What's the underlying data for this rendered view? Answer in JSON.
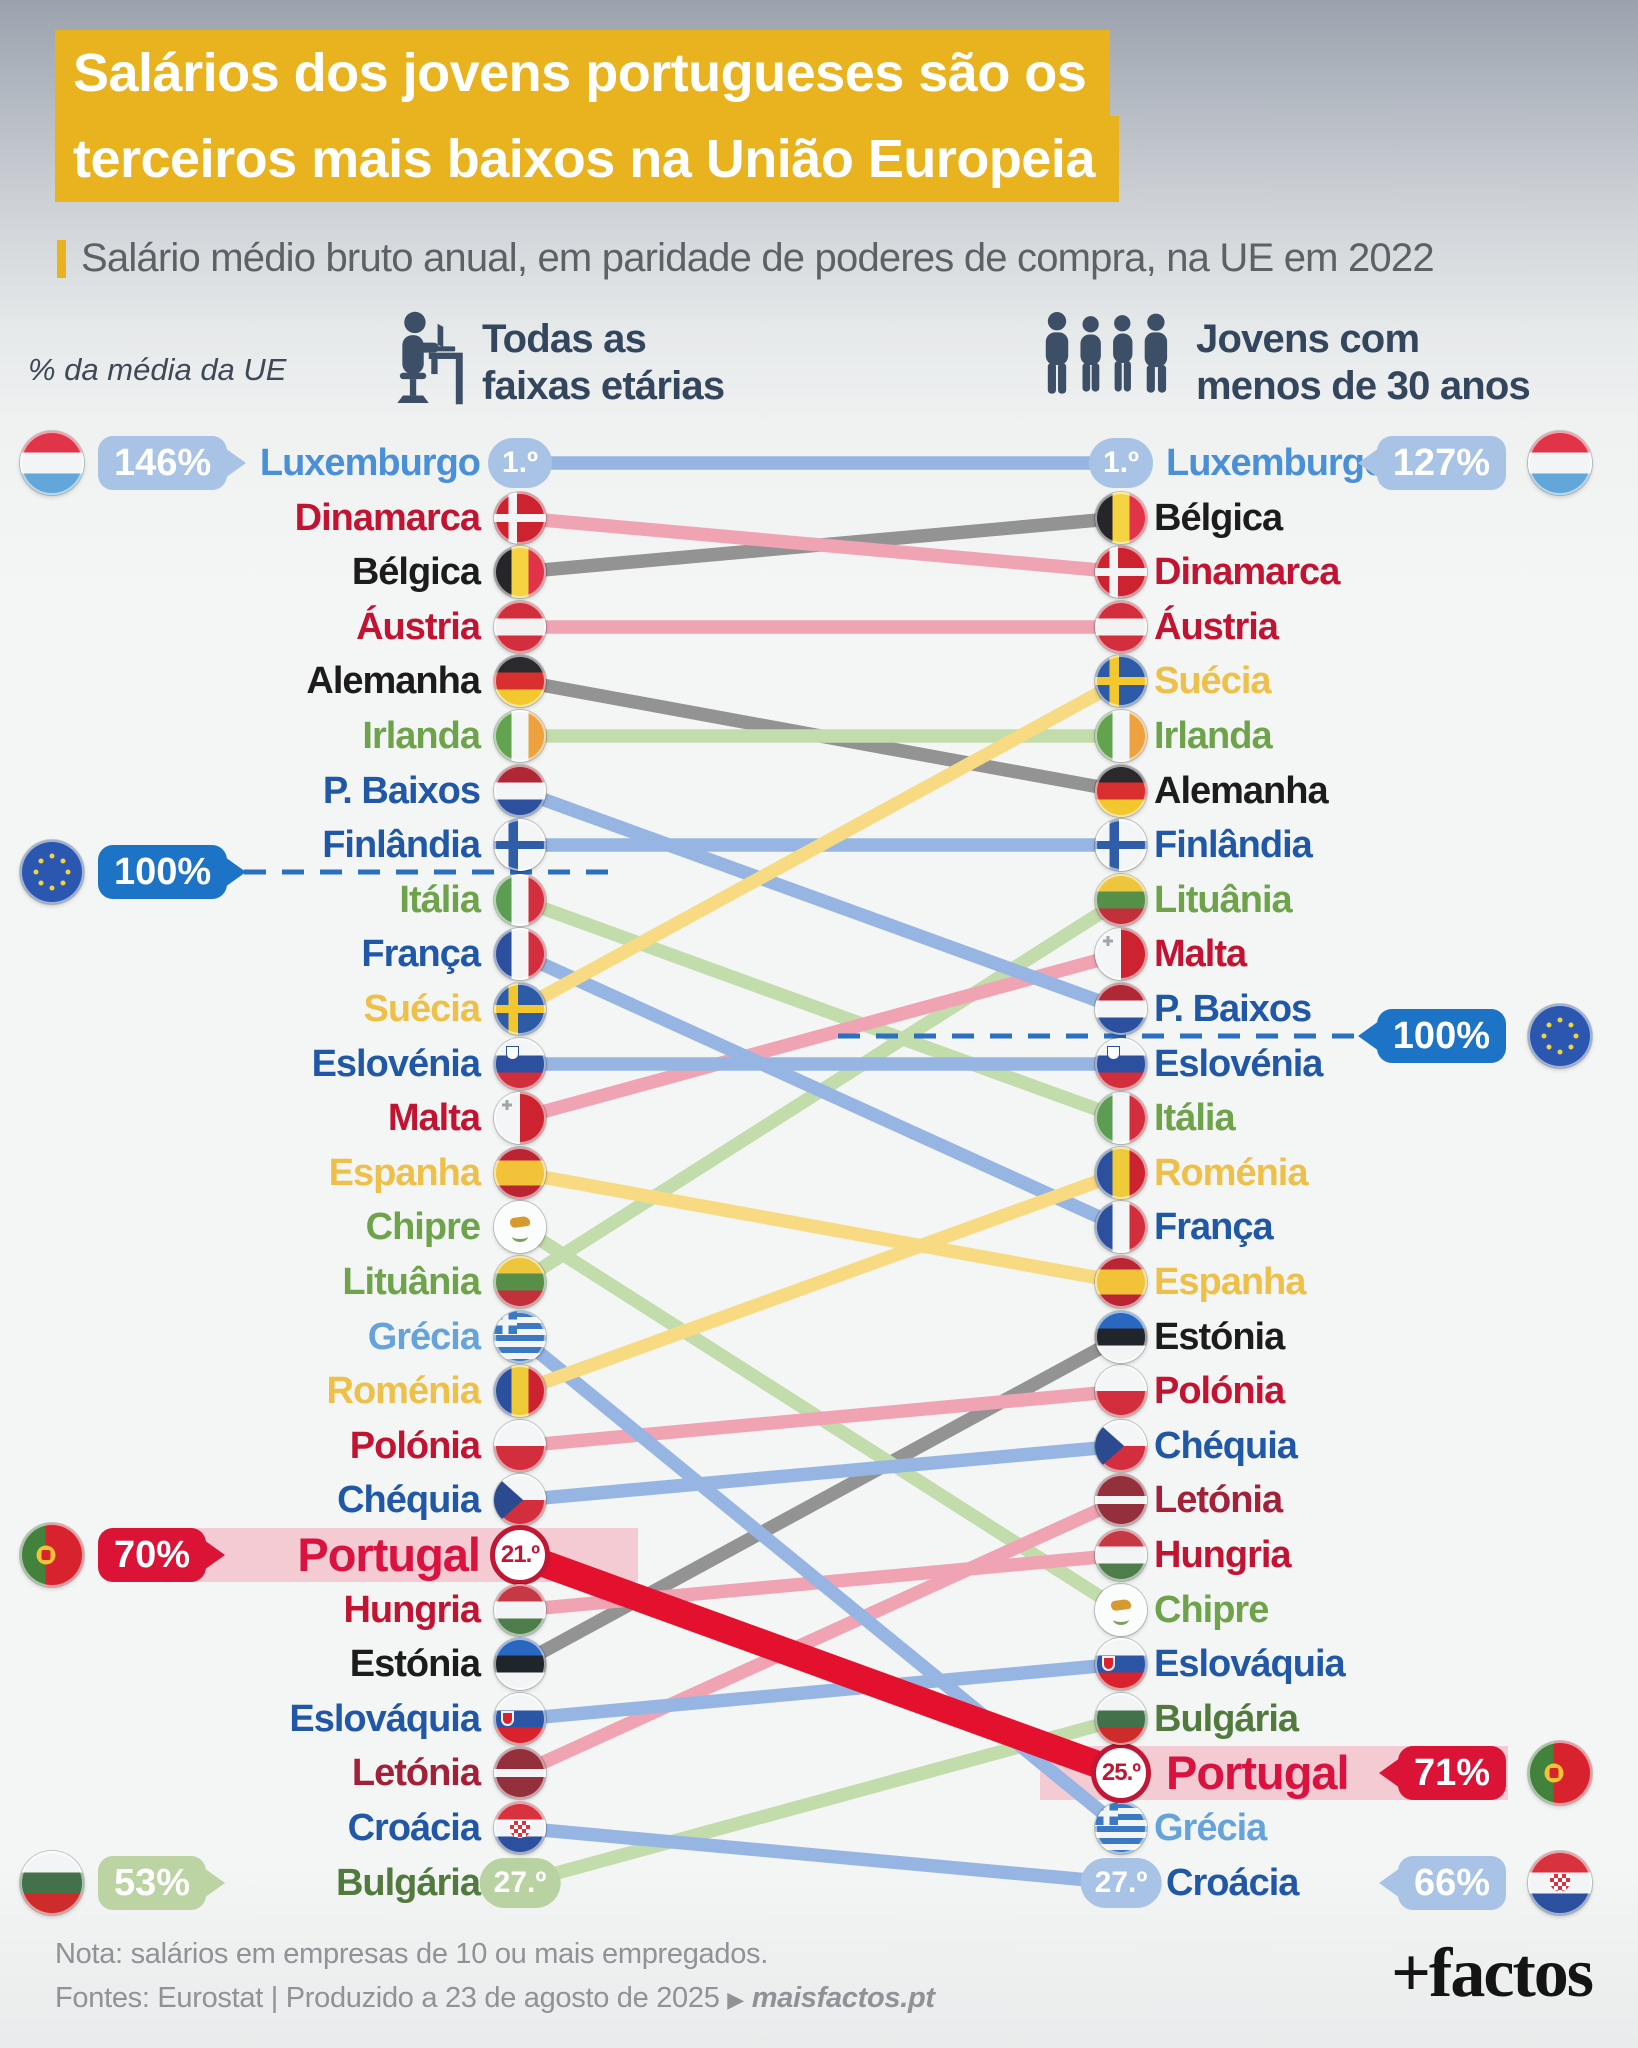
{
  "title": {
    "line1": "Salários dos jovens portugueses são os",
    "line2": "terceiros mais baixos na União Europeia"
  },
  "subtitle": "Salário médio bruto anual, em paridade de poderes de compra, na UE em 2022",
  "axis_note": "% da média da UE",
  "columns": {
    "left": {
      "label_line1": "Todas as",
      "label_line2": "faixas etárias",
      "icon": "worker-at-desk-icon"
    },
    "right": {
      "label_line1": "Jovens com",
      "label_line2": "menos de 30 anos",
      "icon": "young-people-icon"
    }
  },
  "chart_data": {
    "type": "slope",
    "title": "Salários dos jovens portugueses são os terceiros mais baixos na União Europeia",
    "subtitle": "Salário médio bruto anual, em paridade de poderes de compra, na UE em 2022",
    "categories": [
      "Todas as faixas etárias",
      "Jovens com menos de 30 anos"
    ],
    "rank_range": [
      1,
      27
    ],
    "countries": [
      {
        "name": "Luxemburgo",
        "flag": "luxembourg",
        "code": "lu",
        "rank_all_ages": 1,
        "rank_under_30": 1,
        "text_color": "blue_bright",
        "line_color": "blue",
        "badge_left": {
          "label": "1.º",
          "style": "lightblue"
        },
        "badge_right": {
          "label": "1.º",
          "style": "lightblue"
        }
      },
      {
        "name": "Dinamarca",
        "flag": "denmark",
        "code": "dk",
        "rank_all_ages": 2,
        "rank_under_30": 3,
        "text_color": "red",
        "line_color": "pink"
      },
      {
        "name": "Bélgica",
        "flag": "belgium",
        "code": "be",
        "rank_all_ages": 3,
        "rank_under_30": 2,
        "text_color": "black",
        "line_color": "gray"
      },
      {
        "name": "Áustria",
        "flag": "austria",
        "code": "at",
        "rank_all_ages": 4,
        "rank_under_30": 4,
        "text_color": "red",
        "line_color": "pink"
      },
      {
        "name": "Alemanha",
        "flag": "germany",
        "code": "de",
        "rank_all_ages": 5,
        "rank_under_30": 7,
        "text_color": "black",
        "line_color": "gray"
      },
      {
        "name": "Irlanda",
        "flag": "ireland",
        "code": "ie",
        "rank_all_ages": 6,
        "rank_under_30": 6,
        "text_color": "green",
        "line_color": "green"
      },
      {
        "name": "P. Baixos",
        "flag": "netherlands",
        "code": "nl",
        "rank_all_ages": 7,
        "rank_under_30": 11,
        "text_color": "blue",
        "line_color": "blue"
      },
      {
        "name": "Finlândia",
        "flag": "finland",
        "code": "fi",
        "rank_all_ages": 8,
        "rank_under_30": 8,
        "text_color": "blue",
        "line_color": "blue"
      },
      {
        "name": "Itália",
        "flag": "italy",
        "code": "it",
        "rank_all_ages": 9,
        "rank_under_30": 13,
        "text_color": "green",
        "line_color": "green"
      },
      {
        "name": "França",
        "flag": "france",
        "code": "fr",
        "rank_all_ages": 10,
        "rank_under_30": 15,
        "text_color": "blue",
        "line_color": "blue"
      },
      {
        "name": "Suécia",
        "flag": "sweden",
        "code": "se",
        "rank_all_ages": 11,
        "rank_under_30": 5,
        "text_color": "gold",
        "line_color": "yellow"
      },
      {
        "name": "Eslovénia",
        "flag": "slovenia",
        "code": "si",
        "rank_all_ages": 12,
        "rank_under_30": 12,
        "text_color": "blue",
        "line_color": "blue"
      },
      {
        "name": "Malta",
        "flag": "malta",
        "code": "mt",
        "rank_all_ages": 13,
        "rank_under_30": 10,
        "text_color": "red",
        "line_color": "pink"
      },
      {
        "name": "Espanha",
        "flag": "spain",
        "code": "es",
        "rank_all_ages": 14,
        "rank_under_30": 16,
        "text_color": "gold",
        "line_color": "yellow"
      },
      {
        "name": "Chipre",
        "flag": "cyprus",
        "code": "cy",
        "rank_all_ages": 15,
        "rank_under_30": 22,
        "text_color": "green",
        "line_color": "green"
      },
      {
        "name": "Lituânia",
        "flag": "lithuania",
        "code": "lt",
        "rank_all_ages": 16,
        "rank_under_30": 9,
        "text_color": "green",
        "line_color": "green"
      },
      {
        "name": "Grécia",
        "flag": "greece",
        "code": "gr",
        "rank_all_ages": 17,
        "rank_under_30": 26,
        "text_color": "light_blue",
        "line_color": "blue"
      },
      {
        "name": "Roménia",
        "flag": "romania",
        "code": "ro",
        "rank_all_ages": 18,
        "rank_under_30": 14,
        "text_color": "gold",
        "line_color": "yellow"
      },
      {
        "name": "Polónia",
        "flag": "poland",
        "code": "pl",
        "rank_all_ages": 19,
        "rank_under_30": 18,
        "text_color": "red",
        "line_color": "pink"
      },
      {
        "name": "Chéquia",
        "flag": "czechia",
        "code": "cz",
        "rank_all_ages": 20,
        "rank_under_30": 19,
        "text_color": "blue",
        "line_color": "blue"
      },
      {
        "name": "Portugal",
        "flag": "portugal",
        "code": "pt",
        "rank_all_ages": 21,
        "rank_under_30": 25,
        "text_color": "portugal",
        "line_color": "red",
        "highlight": true,
        "badge_left": {
          "label": "21.º",
          "style": "circle"
        },
        "badge_right": {
          "label": "25.º",
          "style": "circle"
        }
      },
      {
        "name": "Hungria",
        "flag": "hungary",
        "code": "hu",
        "rank_all_ages": 22,
        "rank_under_30": 21,
        "text_color": "red",
        "line_color": "pink"
      },
      {
        "name": "Estónia",
        "flag": "estonia",
        "code": "ee",
        "rank_all_ages": 23,
        "rank_under_30": 17,
        "text_color": "black",
        "line_color": "gray"
      },
      {
        "name": "Eslováquia",
        "flag": "slovakia",
        "code": "sk",
        "rank_all_ages": 24,
        "rank_under_30": 23,
        "text_color": "blue",
        "line_color": "blue"
      },
      {
        "name": "Letónia",
        "flag": "latvia",
        "code": "lv",
        "rank_all_ages": 25,
        "rank_under_30": 20,
        "text_color": "dark_red",
        "line_color": "pink"
      },
      {
        "name": "Croácia",
        "flag": "croatia",
        "code": "hr",
        "rank_all_ages": 26,
        "rank_under_30": 27,
        "text_color": "blue",
        "line_color": "blue",
        "badge_right": {
          "label": "27.º",
          "style": "lightblue"
        }
      },
      {
        "name": "Bulgária",
        "flag": "bulgaria",
        "code": "bg",
        "rank_all_ages": 27,
        "rank_under_30": 24,
        "text_color": "dark_green",
        "line_color": "green",
        "badge_left": {
          "label": "27.º",
          "style": "lightgreen"
        }
      }
    ],
    "annotations": {
      "eu_average_line": {
        "label": "100%",
        "left_between_ranks": [
          8,
          9
        ],
        "right_between_ranks": [
          11,
          12
        ]
      },
      "values_pct_of_eu_average": {
        "Luxemburgo": {
          "all_ages": "146%",
          "under_30": "127%"
        },
        "UE": {
          "all_ages": "100%",
          "under_30": "100%"
        },
        "Portugal": {
          "all_ages": "70%",
          "under_30": "71%"
        },
        "Bulgária": {
          "all_ages": "53%"
        },
        "Croácia": {
          "under_30": "66%"
        }
      }
    },
    "palette": {
      "lines": {
        "blue": "#97b5e3",
        "pink": "#efa3b3",
        "gray": "#939393",
        "green": "#c3dcab",
        "yellow": "#f7da82",
        "red": "#e3112e"
      },
      "badges": {
        "lightblue": "#a9c3e6",
        "blue": "#1d73c6",
        "red": "#da1337",
        "lightgreen": "#bcd3a3"
      },
      "highlight_band": "#f5cbd3",
      "title_background": "#e9b320",
      "eu_dash": "#2a6fc0"
    },
    "legend_position": "none",
    "grid": false
  },
  "callouts": {
    "left": [
      {
        "percent": "146%",
        "flag": "luxembourg",
        "code": "lu",
        "style": "lightblue",
        "row_rank": 1
      },
      {
        "percent": "100%",
        "flag": "eu",
        "code": "eu",
        "style": "blue",
        "dashed": true
      },
      {
        "percent": "70%",
        "flag": "portugal",
        "code": "pt",
        "style": "red",
        "row_rank": 21
      },
      {
        "percent": "53%",
        "flag": "bulgaria",
        "code": "bg",
        "style": "lightgreen",
        "row_rank": 27
      }
    ],
    "right": [
      {
        "percent": "127%",
        "flag": "luxembourg",
        "code": "lu",
        "style": "lightblue",
        "row_rank": 1
      },
      {
        "percent": "100%",
        "flag": "eu",
        "code": "eu",
        "style": "blue",
        "dashed": true
      },
      {
        "percent": "71%",
        "flag": "portugal",
        "code": "pt",
        "style": "red",
        "row_rank": 25
      },
      {
        "percent": "66%",
        "flag": "croatia",
        "code": "hr",
        "style": "lightblue",
        "row_rank": 27
      }
    ]
  },
  "footer": {
    "note": "Nota: salários em empresas de 10 ou mais empregados.",
    "sources": "Fontes: Eurostat | Produzido a 23 de agosto de 2025",
    "arrow": "▶",
    "site": "maisfactos.pt",
    "logo": "+factos"
  }
}
